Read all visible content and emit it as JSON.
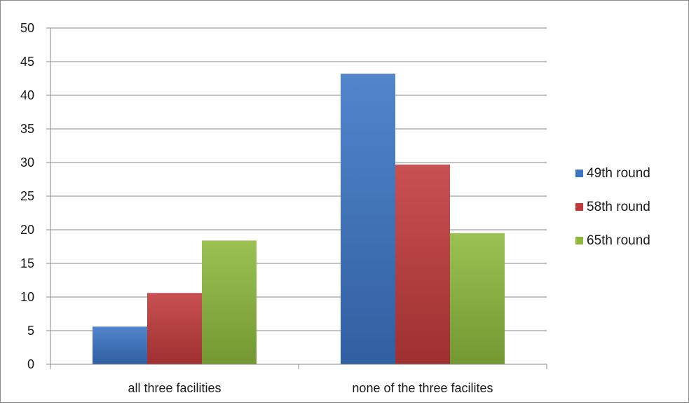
{
  "chart_data": {
    "type": "bar",
    "title": "",
    "xlabel": "",
    "ylabel": "",
    "categories": [
      "all three facilities",
      "none of the three facilites"
    ],
    "series": [
      {
        "name": "49th round",
        "values": [
          5.6,
          43.2
        ],
        "color": "#3a74c4"
      },
      {
        "name": "58th round",
        "values": [
          10.6,
          29.7
        ],
        "color": "#c1393a"
      },
      {
        "name": "65th round",
        "values": [
          18.4,
          19.5
        ],
        "color": "#8db83c"
      }
    ],
    "ylim": [
      0,
      50
    ],
    "yticks": [
      0,
      5,
      10,
      15,
      20,
      25,
      30,
      35,
      40,
      45,
      50
    ],
    "grid": true,
    "legend_position": "right"
  }
}
